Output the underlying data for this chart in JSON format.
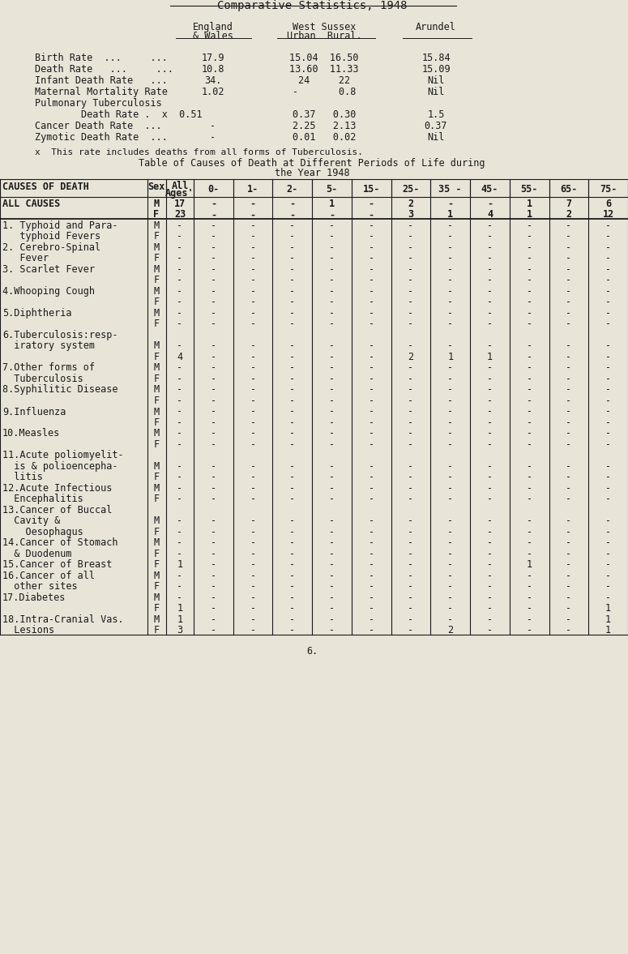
{
  "bg_color": "#e8e4d8",
  "text_color": "#1a1a1a",
  "title1": "Comparative Statistics, 1948",
  "footnote": "x  This rate includes deaths from all forms of Tuberculosis.",
  "page_number": "6.",
  "font_size": 8.5,
  "table_rows": [
    [
      "ALL CAUSES",
      "M",
      "17",
      "-",
      "-",
      "-",
      "1",
      "-",
      "2",
      "-",
      "-",
      "1",
      "7",
      "6"
    ],
    [
      "",
      "F",
      "23",
      "-",
      "-",
      "-",
      "-",
      "-",
      "3",
      "1",
      "4",
      "1",
      "2",
      "12"
    ],
    [
      "1. Typhoid and Para-",
      "M",
      "-",
      "-",
      "-",
      "-",
      "-",
      "-",
      "-",
      "-",
      "-",
      "-",
      "-",
      "-"
    ],
    [
      "   typhoid Fevers",
      "F",
      "-",
      "-",
      "-",
      "-",
      "-",
      "-",
      "-",
      "-",
      "-",
      "-",
      "-",
      "-"
    ],
    [
      "2. Cerebro-Spinal",
      "M",
      "-",
      "-",
      "-",
      "-",
      "-",
      "-",
      "-",
      "-",
      "-",
      "-",
      "-",
      "-"
    ],
    [
      "   Fever",
      "F",
      "-",
      "-",
      "-",
      "-",
      "-",
      "-",
      "-",
      "-",
      "-",
      "-",
      "-",
      "-"
    ],
    [
      "3. Scarlet Fever",
      "M",
      "-",
      "-",
      "-",
      "-",
      "-",
      "-",
      "-",
      "-",
      "-",
      "-",
      "-",
      "-"
    ],
    [
      "",
      "F",
      "-",
      "-",
      "-",
      "-",
      "-",
      "-",
      "-",
      "-",
      "-",
      "-",
      "-",
      "-"
    ],
    [
      "4.Whooping Cough",
      "M",
      "-",
      "-",
      "-",
      "-",
      "-",
      "-",
      "-",
      "-",
      "-",
      "-",
      "-",
      "-"
    ],
    [
      "",
      "F",
      "-",
      "-",
      "-",
      "-",
      "-",
      "-",
      "-",
      "-",
      "-",
      "-",
      "-",
      "-"
    ],
    [
      "5.Diphtheria",
      "M",
      "-",
      "-",
      "-",
      "-",
      "-",
      "-",
      "-",
      "-",
      "-",
      "-",
      "-",
      "-"
    ],
    [
      "",
      "F",
      "-",
      "-",
      "-",
      "-",
      "-",
      "-",
      "-",
      "-",
      "-",
      "-",
      "-",
      "-"
    ],
    [
      "6.Tuberculosis:resp-",
      "",
      "",
      "",
      "",
      "",
      "",
      "",
      "",
      "",
      "",
      "",
      "",
      ""
    ],
    [
      "  iratory system",
      "M",
      "-",
      "-",
      "-",
      "-",
      "-",
      "-",
      "-",
      "-",
      "-",
      "-",
      "-",
      "-"
    ],
    [
      "",
      "F",
      "4",
      "-",
      "-",
      "-",
      "-",
      "-",
      "2",
      "1",
      "1",
      "-",
      "-",
      "-"
    ],
    [
      "7.Other forms of",
      "M",
      "-",
      "-",
      "-",
      "-",
      "-",
      "-",
      "-",
      "-",
      "-",
      "-",
      "-",
      "-"
    ],
    [
      "  Tuberculosis",
      "F",
      "-",
      "-",
      "-",
      "-",
      "-",
      "-",
      "-",
      "-",
      "-",
      "-",
      "-",
      "-"
    ],
    [
      "8.Syphilitic Disease",
      "M",
      "-",
      "-",
      "-",
      "-",
      "-",
      "-",
      "-",
      "-",
      "-",
      "-",
      "-",
      "-"
    ],
    [
      "",
      "F",
      "-",
      "-",
      "-",
      "-",
      "-",
      "-",
      "-",
      "-",
      "-",
      "-",
      "-",
      "-"
    ],
    [
      "9.Influenza",
      "M",
      "-",
      "-",
      "-",
      "-",
      "-",
      "-",
      "-",
      "-",
      "-",
      "-",
      "-",
      "-"
    ],
    [
      "",
      "F",
      "-",
      "-",
      "-",
      "-",
      "-",
      "-",
      "-",
      "-",
      "-",
      "-",
      "-",
      "-"
    ],
    [
      "10.Measles",
      "M",
      "-",
      "-",
      "-",
      "-",
      "-",
      "-",
      "-",
      "-",
      "-",
      "-",
      "-",
      "-"
    ],
    [
      "",
      "F",
      "-",
      "-",
      "-",
      "-",
      "-",
      "-",
      "-",
      "-",
      "-",
      "-",
      "-",
      "-"
    ],
    [
      "11.Acute poliomyelit-",
      "",
      "",
      "",
      "",
      "",
      "",
      "",
      "",
      "",
      "",
      "",
      "",
      ""
    ],
    [
      "  is & polioencepha-",
      "M",
      "-",
      "-",
      "-",
      "-",
      "-",
      "-",
      "-",
      "-",
      "-",
      "-",
      "-",
      "-"
    ],
    [
      "  litis",
      "F",
      "-",
      "-",
      "-",
      "-",
      "-",
      "-",
      "-",
      "-",
      "-",
      "-",
      "-",
      "-"
    ],
    [
      "12.Acute Infectious",
      "M",
      "-",
      "-",
      "-",
      "-",
      "-",
      "-",
      "-",
      "-",
      "-",
      "-",
      "-",
      "-"
    ],
    [
      "  Encephalitis",
      "F",
      "-",
      "-",
      "-",
      "-",
      "-",
      "-",
      "-",
      "-",
      "-",
      "-",
      "-",
      "-"
    ],
    [
      "13.Cancer of Buccal",
      "",
      "",
      "",
      "",
      "",
      "",
      "",
      "",
      "",
      "",
      "",
      "",
      ""
    ],
    [
      "  Cavity &",
      "M",
      "-",
      "-",
      "-",
      "-",
      "-",
      "-",
      "-",
      "-",
      "-",
      "-",
      "-",
      "-"
    ],
    [
      "    Oesophagus",
      "F",
      "-",
      "-",
      "-",
      "-",
      "-",
      "-",
      "-",
      "-",
      "-",
      "-",
      "-",
      "-"
    ],
    [
      "14.Cancer of Stomach",
      "M",
      "-",
      "-",
      "-",
      "-",
      "-",
      "-",
      "-",
      "-",
      "-",
      "-",
      "-",
      "-"
    ],
    [
      "  & Duodenum",
      "F",
      "-",
      "-",
      "-",
      "-",
      "-",
      "-",
      "-",
      "-",
      "-",
      "-",
      "-",
      "-"
    ],
    [
      "15.Cancer of Breast",
      "F",
      "1",
      "-",
      "-",
      "-",
      "-",
      "-",
      "-",
      "-",
      "-",
      "1",
      "-",
      "-"
    ],
    [
      "16.Cancer of all",
      "M",
      "-",
      "-",
      "-",
      "-",
      "-",
      "-",
      "-",
      "-",
      "-",
      "-",
      "-",
      "-"
    ],
    [
      "  other sites",
      "F",
      "-",
      "-",
      "-",
      "-",
      "-",
      "-",
      "-",
      "-",
      "-",
      "-",
      "-",
      "-"
    ],
    [
      "17.Diabetes",
      "M",
      "-",
      "-",
      "-",
      "-",
      "-",
      "-",
      "-",
      "-",
      "-",
      "-",
      "-",
      "-"
    ],
    [
      "",
      "F",
      "1",
      "-",
      "-",
      "-",
      "-",
      "-",
      "-",
      "-",
      "-",
      "-",
      "-",
      "1"
    ],
    [
      "18.Intra-Cranial Vas.",
      "M",
      "1",
      "-",
      "-",
      "-",
      "-",
      "-",
      "-",
      "-",
      "-",
      "-",
      "-",
      "1"
    ],
    [
      "  Lesions",
      "F",
      "3",
      "-",
      "-",
      "-",
      "-",
      "-",
      "-",
      "2",
      "-",
      "-",
      "-",
      "1"
    ]
  ]
}
